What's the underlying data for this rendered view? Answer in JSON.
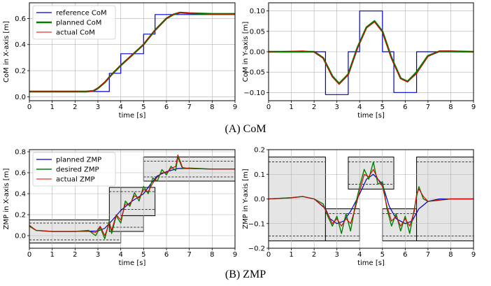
{
  "captions": [
    "(A) CoM",
    "(B) ZMP"
  ],
  "colors": {
    "blue": "#0000cc",
    "green": "#008000",
    "red": "#dd0000",
    "black": "#000000",
    "grid": "#b0b0b0",
    "band": "#e5e5e5"
  },
  "chart_data": [
    {
      "id": "com-x",
      "type": "line",
      "xlabel": "time [s]",
      "ylabel": "CoM in X-axis [m]",
      "xlim": [
        0,
        9
      ],
      "ylim": [
        -0.03,
        0.72
      ],
      "xticks": [
        0,
        1,
        2,
        3,
        4,
        5,
        6,
        7,
        8,
        9
      ],
      "yticks": [
        0.0,
        0.2,
        0.4,
        0.6
      ],
      "ytick_labels": [
        "0.0",
        "0.2",
        "0.4",
        "0.6"
      ],
      "grid": true,
      "legend": "top-left",
      "series": [
        {
          "name": "reference CoM",
          "color": "#0000cc",
          "width": 1.2,
          "step": true,
          "x": [
            0,
            3,
            3,
            3.5,
            3.5,
            4,
            4,
            4.5,
            4.5,
            5,
            5,
            5.5,
            5.5,
            6,
            6,
            9
          ],
          "y": [
            0.04,
            0.04,
            0.04,
            0.04,
            0.18,
            0.18,
            0.33,
            0.33,
            0.33,
            0.33,
            0.48,
            0.48,
            0.63,
            0.63,
            0.63,
            0.63
          ]
        },
        {
          "name": "planned CoM",
          "color": "#008000",
          "width": 2.6,
          "x": [
            0,
            2,
            2.5,
            2.8,
            3.0,
            3.3,
            3.6,
            4.0,
            4.5,
            5.0,
            5.5,
            6.0,
            6.3,
            6.6,
            7.0,
            8.0,
            9.0
          ],
          "y": [
            0.04,
            0.04,
            0.04,
            0.045,
            0.065,
            0.11,
            0.17,
            0.24,
            0.32,
            0.4,
            0.51,
            0.6,
            0.63,
            0.645,
            0.64,
            0.635,
            0.635
          ]
        },
        {
          "name": "actual CoM",
          "color": "#dd0000",
          "width": 1.1,
          "x": [
            0,
            2,
            2.5,
            2.8,
            3.0,
            3.3,
            3.6,
            4.0,
            4.5,
            5.0,
            5.5,
            6.0,
            6.3,
            6.6,
            7.0,
            8.0,
            9.0
          ],
          "y": [
            0.04,
            0.04,
            0.038,
            0.044,
            0.066,
            0.112,
            0.172,
            0.243,
            0.322,
            0.402,
            0.512,
            0.602,
            0.632,
            0.646,
            0.641,
            0.634,
            0.634
          ]
        }
      ]
    },
    {
      "id": "com-y",
      "type": "line",
      "xlabel": "time [s]",
      "ylabel": "CoM in Y-axis [m]",
      "xlim": [
        0,
        9
      ],
      "ylim": [
        -0.12,
        0.12
      ],
      "xticks": [
        0,
        1,
        2,
        3,
        4,
        5,
        6,
        7,
        8,
        9
      ],
      "yticks": [
        -0.1,
        -0.05,
        0.0,
        0.05,
        0.1
      ],
      "ytick_labels": [
        "−0.10",
        "−0.05",
        "0.00",
        "0.05",
        "0.10"
      ],
      "grid": true,
      "legend": "none",
      "series": [
        {
          "name": "reference CoM",
          "color": "#0000cc",
          "width": 1.2,
          "step": true,
          "x": [
            0,
            2.5,
            2.5,
            3.5,
            3.5,
            4.0,
            4.0,
            5.0,
            5.0,
            5.5,
            5.5,
            6.5,
            6.5,
            9
          ],
          "y": [
            0,
            0,
            -0.105,
            -0.105,
            0,
            0,
            0.1,
            0.1,
            0,
            0,
            -0.1,
            -0.1,
            0,
            0
          ]
        },
        {
          "name": "planned CoM",
          "color": "#008000",
          "width": 2.6,
          "x": [
            0,
            1.5,
            2.0,
            2.4,
            2.8,
            3.1,
            3.5,
            3.9,
            4.3,
            4.65,
            5.0,
            5.4,
            5.8,
            6.1,
            6.5,
            7.0,
            7.5,
            8.0,
            9.0
          ],
          "y": [
            0,
            0.0,
            0.0,
            -0.015,
            -0.06,
            -0.078,
            -0.055,
            0.01,
            0.06,
            0.075,
            0.05,
            -0.015,
            -0.065,
            -0.073,
            -0.05,
            -0.01,
            0.001,
            0.001,
            0
          ]
        },
        {
          "name": "actual CoM",
          "color": "#dd0000",
          "width": 1.1,
          "x": [
            0,
            1.5,
            2.0,
            2.4,
            2.8,
            3.1,
            3.5,
            3.9,
            4.3,
            4.65,
            5.0,
            5.4,
            5.8,
            6.1,
            6.5,
            7.0,
            7.5,
            8.0,
            9.0
          ],
          "y": [
            0,
            0.002,
            0.0,
            -0.016,
            -0.062,
            -0.08,
            -0.057,
            0.008,
            0.058,
            0.073,
            0.048,
            -0.017,
            -0.066,
            -0.074,
            -0.054,
            -0.012,
            0.002,
            0.002,
            0
          ]
        }
      ]
    },
    {
      "id": "zmp-x",
      "type": "line",
      "xlabel": "time [s]",
      "ylabel": "ZMP in X-axis [m]",
      "xlim": [
        0,
        9
      ],
      "ylim": [
        -0.12,
        0.82
      ],
      "xticks": [
        0,
        1,
        2,
        3,
        4,
        5,
        6,
        7,
        8,
        9
      ],
      "yticks": [
        0.0,
        0.2,
        0.4,
        0.6,
        0.8
      ],
      "ytick_labels": [
        "0.0",
        "0.2",
        "0.4",
        "0.6",
        "0.8"
      ],
      "grid": true,
      "legend": "top-left",
      "support": [
        {
          "x0": 0,
          "x1": 4,
          "y0": -0.07,
          "y1": 0.15,
          "i0": -0.04,
          "i1": 0.12
        },
        {
          "x0": 3.5,
          "x1": 5,
          "y0": 0.04,
          "y1": 0.46,
          "i0": 0.08,
          "i1": 0.42
        },
        {
          "x0": 4,
          "x1": 5.5,
          "y0": 0.19,
          "y1": 0.46,
          "i0": 0.25,
          "i1": 0.42
        },
        {
          "x0": 5,
          "x1": 9,
          "y0": 0.52,
          "y1": 0.75,
          "i0": 0.56,
          "i1": 0.71
        }
      ],
      "series": [
        {
          "name": "planned ZMP",
          "color": "#0000cc",
          "width": 1.2,
          "x": [
            0,
            0.3,
            1,
            2,
            3,
            3.3,
            3.6,
            4.0,
            4.5,
            5.0,
            5.3,
            5.6,
            6.0,
            6.5,
            7.0,
            8.0,
            9.0
          ],
          "y": [
            0.09,
            0.05,
            0.04,
            0.04,
            0.045,
            0.07,
            0.14,
            0.24,
            0.33,
            0.4,
            0.49,
            0.57,
            0.61,
            0.64,
            0.64,
            0.635,
            0.635
          ]
        },
        {
          "name": "desired ZMP",
          "color": "#008000",
          "width": 1.4,
          "x": [
            0,
            0.3,
            1,
            2,
            2.6,
            2.9,
            3.1,
            3.3,
            3.5,
            3.6,
            3.8,
            4.0,
            4.2,
            4.4,
            4.6,
            4.8,
            5.0,
            5.2,
            5.4,
            5.6,
            5.8,
            6.0,
            6.2,
            6.4,
            6.5,
            6.7,
            7.0,
            8.0,
            9.0
          ],
          "y": [
            0.09,
            0.05,
            0.04,
            0.04,
            0.05,
            0.0,
            0.08,
            -0.03,
            0.14,
            0.02,
            0.19,
            0.12,
            0.33,
            0.28,
            0.41,
            0.33,
            0.47,
            0.4,
            0.55,
            0.52,
            0.63,
            0.58,
            0.66,
            0.62,
            0.75,
            0.64,
            0.645,
            0.635,
            0.635
          ]
        },
        {
          "name": "actual ZMP",
          "color": "#dd0000",
          "width": 1.1,
          "x": [
            0,
            0.3,
            1,
            2,
            2.6,
            2.9,
            3.1,
            3.3,
            3.5,
            3.6,
            3.8,
            4.0,
            4.2,
            4.4,
            4.6,
            4.8,
            5.0,
            5.2,
            5.4,
            5.6,
            5.8,
            6.0,
            6.2,
            6.4,
            6.5,
            6.7,
            7.0,
            8.0,
            9.0
          ],
          "y": [
            0.1,
            0.05,
            0.04,
            0.04,
            0.04,
            0.03,
            0.09,
            0.0,
            0.12,
            0.05,
            0.2,
            0.15,
            0.3,
            0.3,
            0.38,
            0.36,
            0.44,
            0.42,
            0.5,
            0.56,
            0.6,
            0.6,
            0.64,
            0.66,
            0.77,
            0.65,
            0.64,
            0.635,
            0.635
          ]
        }
      ]
    },
    {
      "id": "zmp-y",
      "type": "line",
      "xlabel": "time [s]",
      "ylabel": "ZMP in Y-axis [m]",
      "xlim": [
        0,
        9
      ],
      "ylim": [
        -0.2,
        0.2
      ],
      "xticks": [
        0,
        1,
        2,
        3,
        4,
        5,
        6,
        7,
        8,
        9
      ],
      "yticks": [
        -0.2,
        -0.1,
        0.0,
        0.1,
        0.2
      ],
      "ytick_labels": [
        "−0.2",
        "−0.1",
        "0.0",
        "0.1",
        "0.2"
      ],
      "grid": true,
      "legend": "none",
      "support": [
        {
          "x0": 0,
          "x1": 2.5,
          "y0": -0.17,
          "y1": 0.17,
          "i0": -0.15,
          "i1": 0.15
        },
        {
          "x0": 2.5,
          "x1": 4,
          "y0": -0.17,
          "y1": -0.04,
          "i0": -0.15,
          "i1": -0.06
        },
        {
          "x0": 3.5,
          "x1": 5.5,
          "y0": 0.04,
          "y1": 0.17,
          "i0": 0.06,
          "i1": 0.15
        },
        {
          "x0": 5,
          "x1": 6.5,
          "y0": -0.17,
          "y1": -0.04,
          "i0": -0.15,
          "i1": -0.06
        },
        {
          "x0": 6.5,
          "x1": 9,
          "y0": -0.17,
          "y1": 0.17,
          "i0": -0.15,
          "i1": 0.15
        }
      ],
      "series": [
        {
          "name": "planned ZMP",
          "color": "#0000cc",
          "width": 1.2,
          "x": [
            0,
            1,
            1.5,
            2.0,
            2.5,
            2.7,
            3.0,
            3.3,
            3.6,
            4.0,
            4.3,
            4.6,
            5.0,
            5.3,
            5.6,
            6.0,
            6.3,
            6.6,
            7.0,
            7.5,
            8.0,
            9.0
          ],
          "y": [
            0,
            0.005,
            0.01,
            0.0,
            -0.04,
            -0.08,
            -0.1,
            -0.09,
            -0.05,
            0.02,
            0.08,
            0.1,
            0.06,
            -0.03,
            -0.08,
            -0.1,
            -0.09,
            -0.04,
            -0.01,
            0.0,
            0.0,
            0.0
          ]
        },
        {
          "name": "desired ZMP",
          "color": "#008000",
          "width": 1.4,
          "x": [
            0,
            1,
            1.5,
            2.0,
            2.4,
            2.6,
            2.8,
            3.0,
            3.2,
            3.4,
            3.6,
            3.8,
            4.0,
            4.2,
            4.4,
            4.6,
            4.8,
            5.0,
            5.2,
            5.4,
            5.6,
            5.8,
            6.0,
            6.2,
            6.4,
            6.5,
            6.6,
            6.8,
            7.0,
            8.0,
            9.0
          ],
          "y": [
            0,
            0.005,
            0.01,
            0.0,
            -0.02,
            -0.07,
            -0.11,
            -0.07,
            -0.14,
            -0.06,
            -0.13,
            -0.03,
            0.05,
            0.12,
            0.08,
            0.15,
            0.06,
            0.07,
            -0.04,
            -0.11,
            -0.06,
            -0.13,
            -0.07,
            -0.14,
            -0.04,
            0.01,
            0.05,
            0.0,
            -0.01,
            0.0,
            0.0
          ]
        },
        {
          "name": "actual ZMP",
          "color": "#dd0000",
          "width": 1.1,
          "x": [
            0,
            1,
            1.5,
            2.0,
            2.4,
            2.6,
            2.8,
            3.0,
            3.2,
            3.4,
            3.6,
            3.8,
            4.0,
            4.2,
            4.4,
            4.6,
            4.8,
            5.0,
            5.2,
            5.4,
            5.6,
            5.8,
            6.0,
            6.2,
            6.4,
            6.5,
            6.6,
            6.8,
            7.0,
            8.0,
            9.0
          ],
          "y": [
            0,
            0.004,
            0.01,
            0.0,
            -0.03,
            -0.06,
            -0.1,
            -0.08,
            -0.11,
            -0.08,
            -0.1,
            -0.04,
            0.03,
            0.1,
            0.09,
            0.12,
            0.08,
            0.05,
            -0.03,
            -0.09,
            -0.07,
            -0.11,
            -0.08,
            -0.11,
            -0.05,
            0.02,
            0.04,
            0.01,
            -0.01,
            0.0,
            0.0
          ]
        }
      ]
    }
  ]
}
